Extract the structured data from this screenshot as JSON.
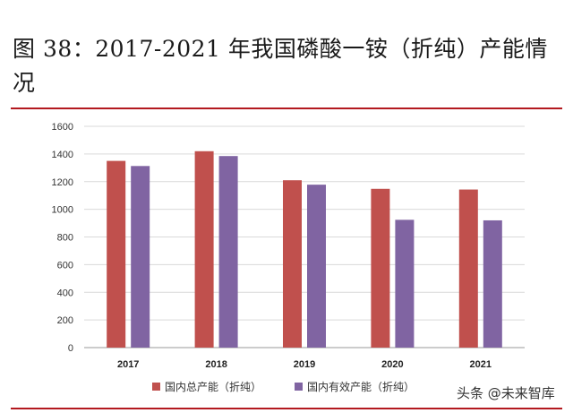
{
  "title": "图 38：2017-2021 年我国磷酸一铵（折纯）产能情况",
  "watermark": "头条 @未来智库",
  "chart_data": {
    "type": "bar",
    "categories": [
      "2017",
      "2018",
      "2019",
      "2020",
      "2021"
    ],
    "series": [
      {
        "name": "国内总产能（折纯）",
        "color": "#c0504d",
        "values": [
          1350,
          1420,
          1210,
          1148,
          1143
        ]
      },
      {
        "name": "国内有效产能（折纯）",
        "color": "#8064a2",
        "values": [
          1313,
          1385,
          1178,
          924,
          920
        ]
      }
    ],
    "ylim": [
      0,
      1600
    ],
    "yticks": [
      0,
      200,
      400,
      600,
      800,
      1000,
      1200,
      1400,
      1600
    ],
    "grid": true,
    "legend_position": "bottom"
  }
}
